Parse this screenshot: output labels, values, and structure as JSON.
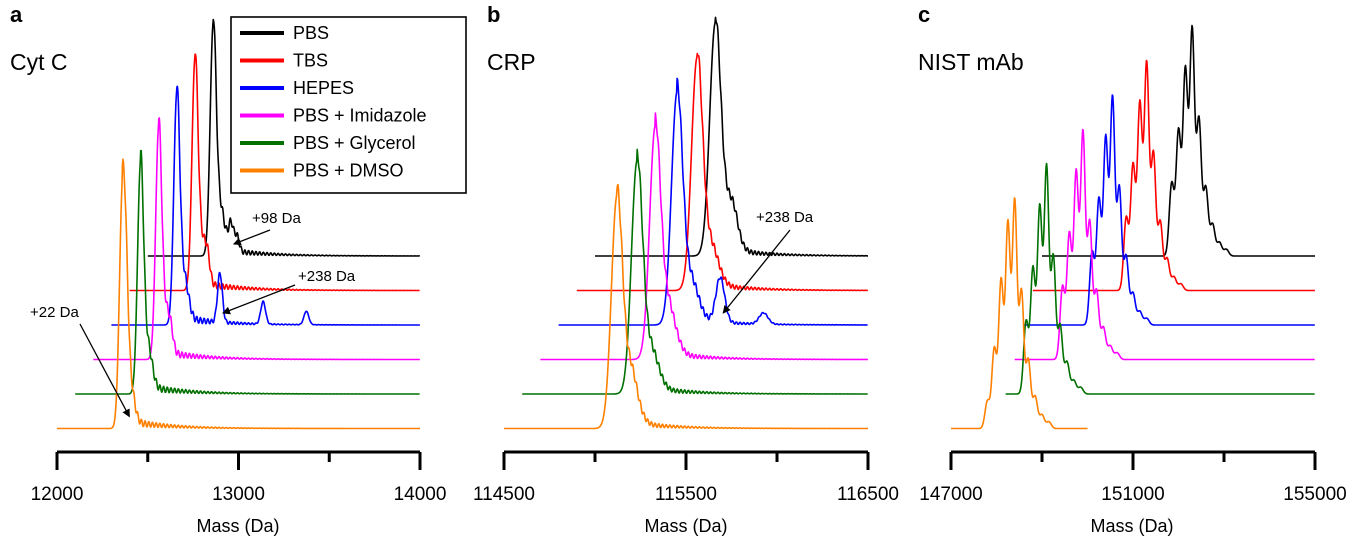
{
  "colors": {
    "PBS": "#000000",
    "TBS": "#ff0000",
    "HEPES": "#0000ff",
    "PBS + Imidazole": "#ff00ff",
    "PBS + Glycerol": "#007000",
    "PBS + DMSO": "#ff8000"
  },
  "legend": {
    "entries": [
      "PBS",
      "TBS",
      "HEPES",
      "PBS + Imidazole",
      "PBS + Glycerol",
      "PBS + DMSO"
    ],
    "placement": "top, panel a"
  },
  "chart_data": [
    {
      "type": "line",
      "panel_label": "a",
      "title": "Cyt C",
      "xlabel": "Mass (Da)",
      "ylabel": "",
      "xlim": [
        12000,
        14000
      ],
      "xticks": [
        "12000",
        "13000",
        "14000"
      ],
      "series": [
        {
          "name": "PBS",
          "peak_mass": 12860,
          "line_start": 12500,
          "line_end": 14000,
          "cluster_width": 900,
          "adduct_peaks": [
            [
              12958,
              0.12
            ],
            [
              12990,
              0.07
            ]
          ]
        },
        {
          "name": "TBS",
          "peak_mass": 12760,
          "line_start": 12400,
          "line_end": 14000,
          "cluster_width": 900,
          "adduct_peaks": [
            [
              12830,
              0.08
            ]
          ]
        },
        {
          "name": "HEPES",
          "peak_mass": 12660,
          "line_start": 12300,
          "line_end": 14000,
          "cluster_width": 900,
          "adduct_peaks": [
            [
              12898,
              0.22
            ],
            [
              13136,
              0.1
            ],
            [
              13374,
              0.06
            ]
          ]
        },
        {
          "name": "PBS + Imidazole",
          "peak_mass": 12560,
          "line_start": 12200,
          "line_end": 14000,
          "cluster_width": 900,
          "adduct_peaks": [
            [
              12628,
              0.05
            ]
          ]
        },
        {
          "name": "PBS + Glycerol",
          "peak_mass": 12460,
          "line_start": 12100,
          "line_end": 14000,
          "cluster_width": 900,
          "adduct_peaks": []
        },
        {
          "name": "PBS + DMSO",
          "peak_mass": 12360,
          "line_start": 12000,
          "line_end": 14000,
          "cluster_width": 900,
          "adduct_peaks": [
            [
              12382,
              0.3
            ]
          ]
        }
      ],
      "annotations": [
        {
          "text": "+98 Da",
          "series": "PBS",
          "target_mass": 12958
        },
        {
          "text": "+238 Da",
          "series": "HEPES",
          "target_mass": 12898
        },
        {
          "text": "+22 Da",
          "series": "PBS + DMSO",
          "target_mass": 12382
        }
      ]
    },
    {
      "type": "line",
      "panel_label": "b",
      "title": "CRP",
      "xlabel": "Mass (Da)",
      "ylabel": "",
      "xlim": [
        114500,
        116500
      ],
      "xticks": [
        "114500",
        "115500",
        "116500"
      ],
      "series": [
        {
          "name": "PBS",
          "peak_mass": 115660,
          "line_start": 115000,
          "line_end": 116500,
          "cluster_width": 500,
          "adduct_peaks": [
            [
              115760,
              0.06
            ]
          ]
        },
        {
          "name": "TBS",
          "peak_mass": 115560,
          "line_start": 114900,
          "line_end": 116500,
          "cluster_width": 500,
          "adduct_peaks": []
        },
        {
          "name": "HEPES",
          "peak_mass": 115450,
          "line_start": 114800,
          "line_end": 116500,
          "cluster_width": 500,
          "adduct_peaks": [
            [
              115688,
              0.2
            ],
            [
              115926,
              0.05
            ]
          ]
        },
        {
          "name": "PBS + Imidazole",
          "peak_mass": 115330,
          "line_start": 114700,
          "line_end": 116500,
          "cluster_width": 500,
          "adduct_peaks": [
            [
              115400,
              0.04
            ]
          ]
        },
        {
          "name": "PBS + Glycerol",
          "peak_mass": 115230,
          "line_start": 114600,
          "line_end": 116500,
          "cluster_width": 500,
          "adduct_peaks": []
        },
        {
          "name": "PBS + DMSO",
          "peak_mass": 115120,
          "line_start": 114500,
          "line_end": 116500,
          "cluster_width": 500,
          "adduct_peaks": [
            [
              115200,
              0.06
            ]
          ]
        }
      ],
      "annotations": [
        {
          "text": "+238 Da",
          "series": "HEPES",
          "target_mass": 115688
        }
      ]
    },
    {
      "type": "line",
      "panel_label": "c",
      "title": "NIST mAb",
      "xlabel": "Mass (Da)",
      "ylabel": "",
      "xlim": [
        147000,
        155000
      ],
      "xticks": [
        "147000",
        "151000",
        "155000"
      ],
      "series": [
        {
          "name": "PBS",
          "line_start": 149000,
          "line_end": 155000,
          "glycoforms": [
            [
              151850,
              0.32
            ],
            [
              152000,
              0.55
            ],
            [
              152150,
              0.82
            ],
            [
              152300,
              1.0
            ],
            [
              152450,
              0.6
            ],
            [
              152600,
              0.3
            ],
            [
              152750,
              0.14
            ],
            [
              152900,
              0.06
            ],
            [
              153050,
              0.03
            ]
          ]
        },
        {
          "name": "TBS",
          "line_start": 148800,
          "line_end": 155000,
          "glycoforms": [
            [
              150850,
              0.32
            ],
            [
              151000,
              0.55
            ],
            [
              151150,
              0.82
            ],
            [
              151300,
              1.0
            ],
            [
              151450,
              0.6
            ],
            [
              151600,
              0.3
            ],
            [
              151750,
              0.14
            ],
            [
              151900,
              0.06
            ],
            [
              152050,
              0.03
            ]
          ]
        },
        {
          "name": "HEPES",
          "line_start": 148600,
          "line_end": 155000,
          "glycoforms": [
            [
              150100,
              0.32
            ],
            [
              150250,
              0.55
            ],
            [
              150400,
              0.82
            ],
            [
              150550,
              1.0
            ],
            [
              150700,
              0.6
            ],
            [
              150850,
              0.3
            ],
            [
              151000,
              0.14
            ],
            [
              151150,
              0.06
            ],
            [
              151300,
              0.03
            ]
          ]
        },
        {
          "name": "PBS + Imidazole",
          "line_start": 148400,
          "line_end": 155000,
          "glycoforms": [
            [
              149450,
              0.32
            ],
            [
              149600,
              0.55
            ],
            [
              149750,
              0.82
            ],
            [
              149900,
              1.0
            ],
            [
              150050,
              0.6
            ],
            [
              150200,
              0.3
            ],
            [
              150350,
              0.14
            ],
            [
              150500,
              0.06
            ],
            [
              150650,
              0.03
            ]
          ]
        },
        {
          "name": "PBS + Glycerol",
          "line_start": 148200,
          "line_end": 155000,
          "glycoforms": [
            [
              148650,
              0.32
            ],
            [
              148800,
              0.55
            ],
            [
              148950,
              0.82
            ],
            [
              149100,
              1.0
            ],
            [
              149250,
              0.6
            ],
            [
              149400,
              0.3
            ],
            [
              149550,
              0.14
            ],
            [
              149700,
              0.06
            ],
            [
              149850,
              0.03
            ]
          ]
        },
        {
          "name": "PBS + DMSO",
          "line_start": 147000,
          "line_end": 150000,
          "glycoforms": [
            [
              147800,
              0.12
            ],
            [
              147950,
              0.35
            ],
            [
              148100,
              0.65
            ],
            [
              148250,
              0.9
            ],
            [
              148400,
              1.0
            ],
            [
              148550,
              0.6
            ],
            [
              148700,
              0.3
            ],
            [
              148850,
              0.14
            ],
            [
              149000,
              0.06
            ],
            [
              149150,
              0.03
            ]
          ]
        }
      ],
      "annotations": []
    }
  ]
}
